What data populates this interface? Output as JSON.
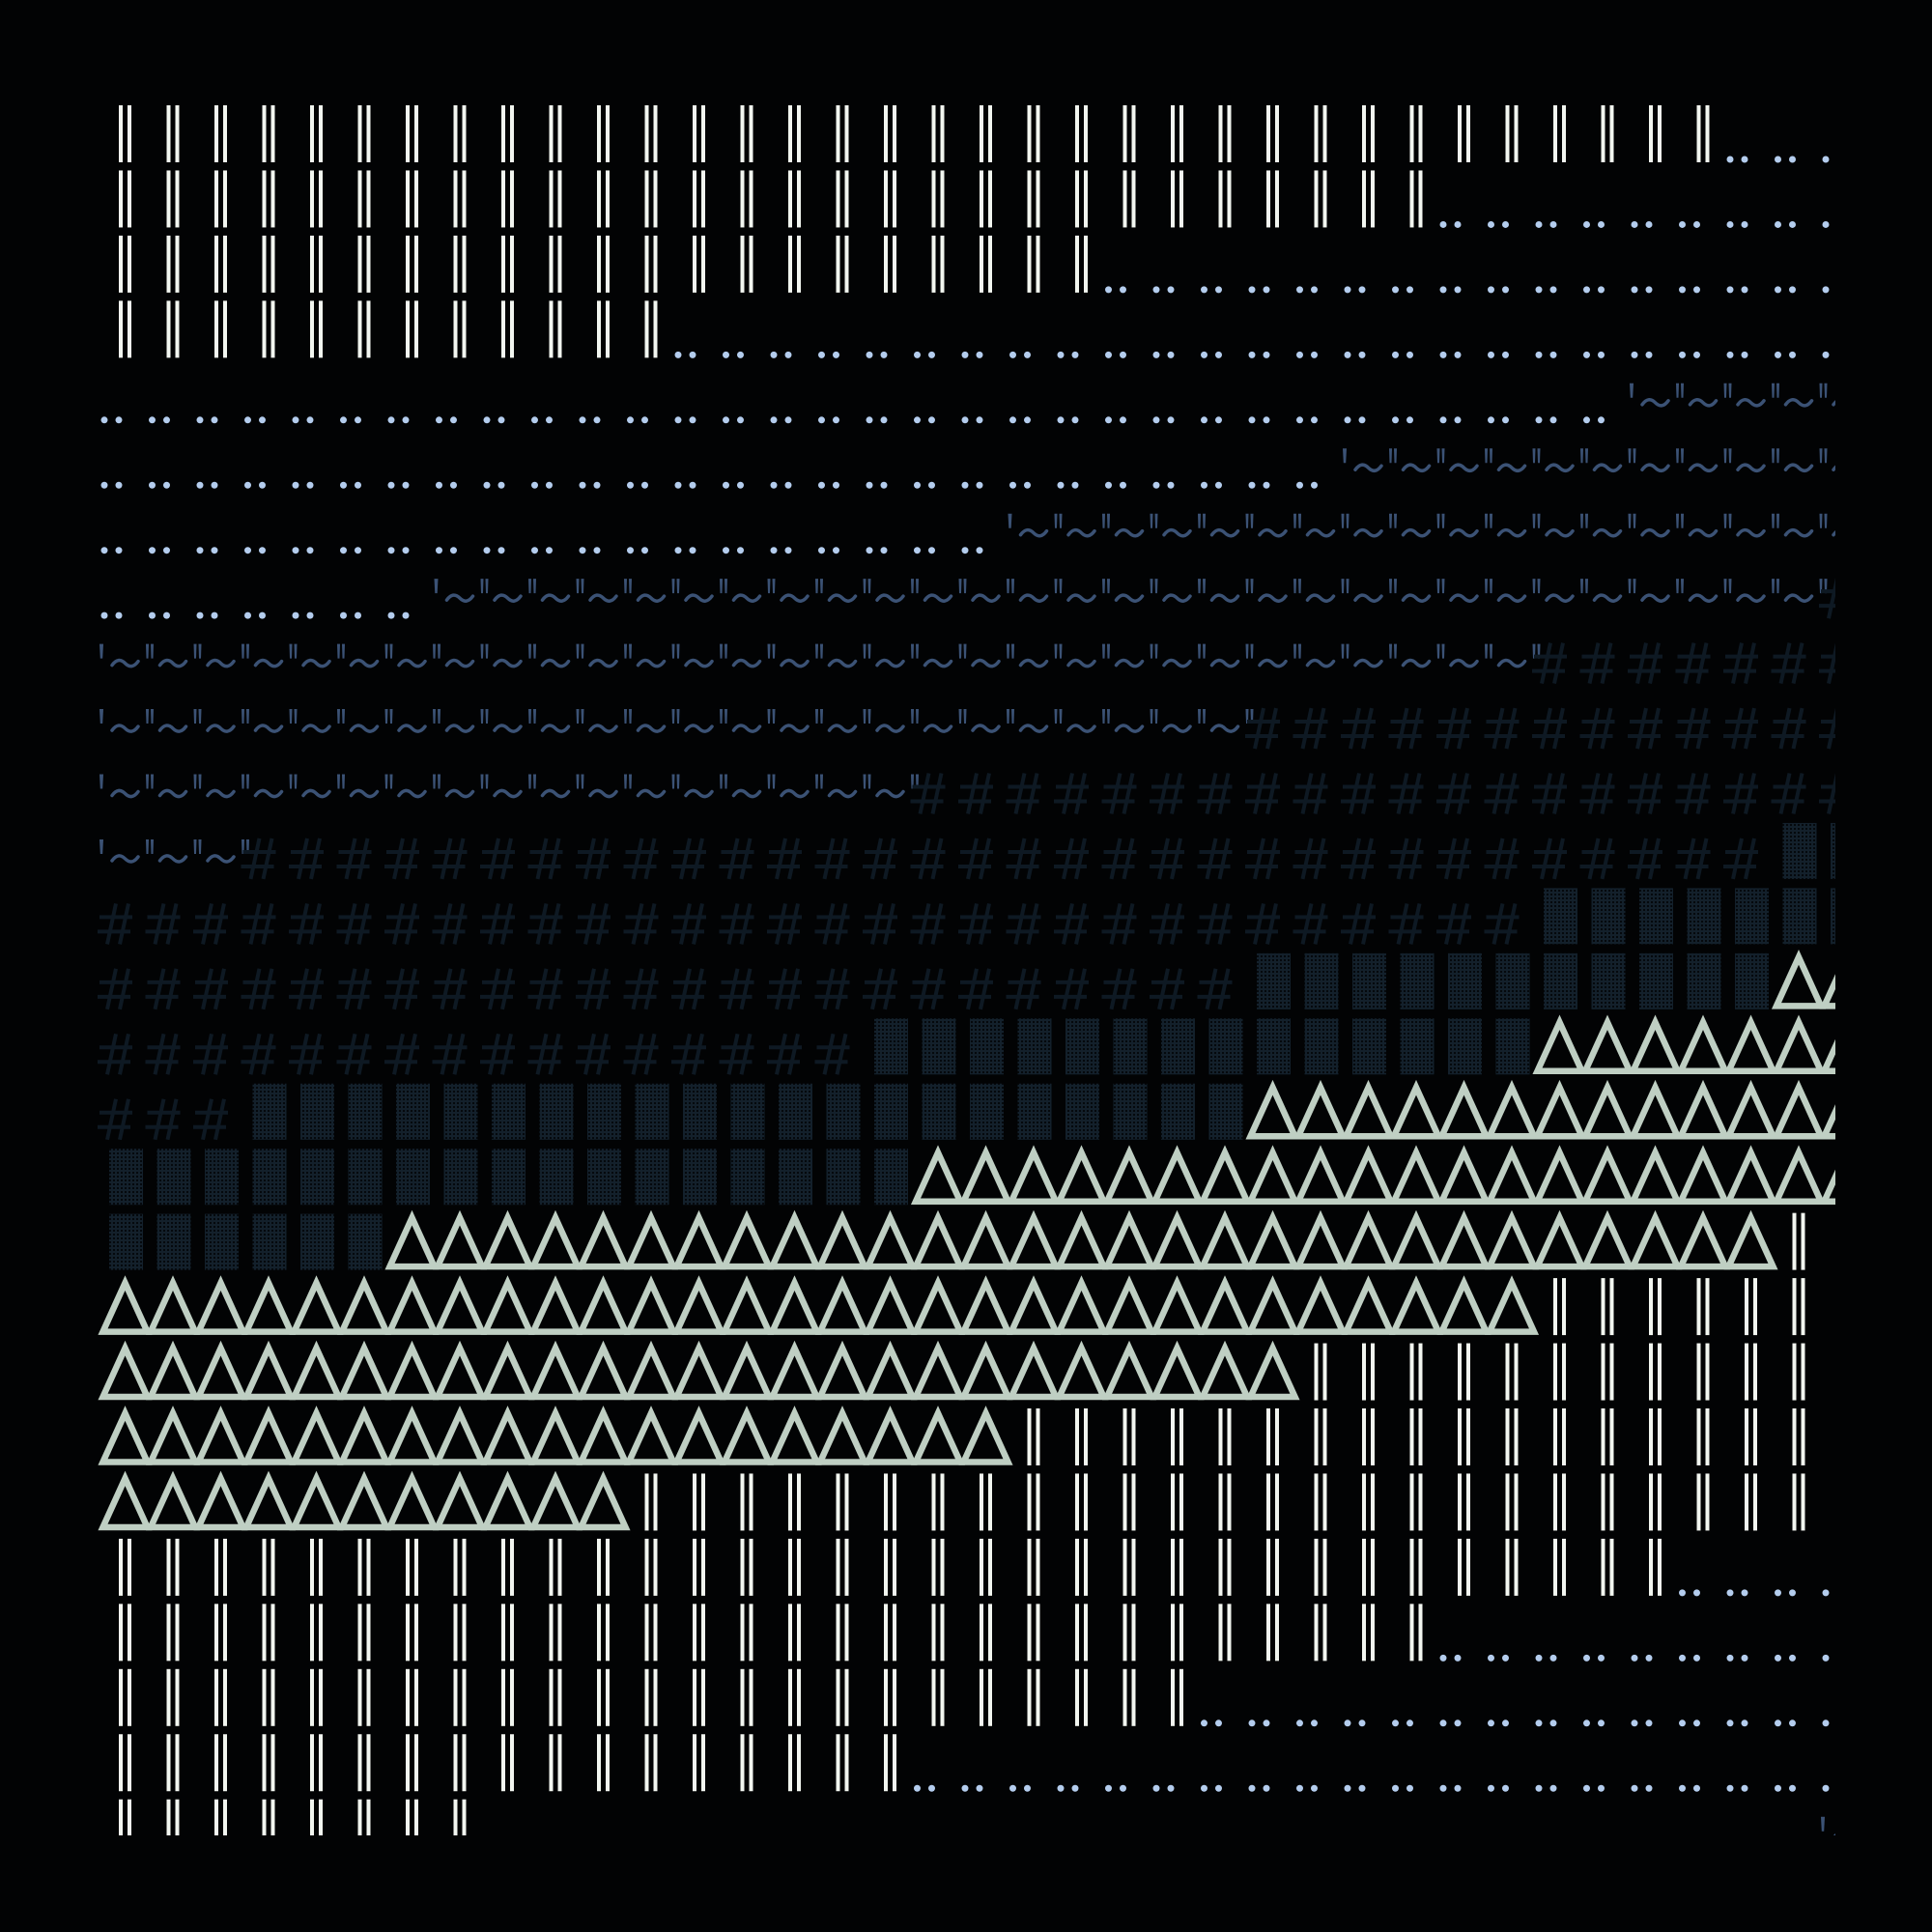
{
  "palette": {
    "background": "#020304",
    "‖": "#f2f6f0",
    "‥": "#b4cdee",
    "~": "#3b5275",
    "#": "#0e1923",
    "▓": "#13202b",
    "△": "#bfcfc3"
  },
  "glyph_names": {
    "‖": "double-bar",
    "‥": "dot-pair",
    "~": "tilde-quote",
    "#": "hash",
    "▓": "dotted-block",
    "△": "triangle",
    " ": "blank"
  },
  "rows": [
    [
      [
        "‖",
        34
      ],
      [
        "‥",
        3
      ]
    ],
    [
      [
        "‖",
        28
      ],
      [
        "‥",
        9
      ]
    ],
    [
      [
        "‖",
        21
      ],
      [
        "‥",
        16
      ]
    ],
    [
      [
        "‖",
        12
      ],
      [
        "‥",
        25
      ]
    ],
    [
      [
        "‥",
        32
      ],
      [
        "~",
        5
      ]
    ],
    [
      [
        "‥",
        26
      ],
      [
        "~",
        11
      ]
    ],
    [
      [
        "‥",
        19
      ],
      [
        "~",
        18
      ]
    ],
    [
      [
        "‥",
        7
      ],
      [
        "~",
        29
      ],
      [
        "#",
        1
      ]
    ],
    [
      [
        "~",
        30
      ],
      [
        "#",
        7
      ]
    ],
    [
      [
        "~",
        24
      ],
      [
        "#",
        13
      ]
    ],
    [
      [
        "~",
        17
      ],
      [
        "#",
        20
      ]
    ],
    [
      [
        "~",
        3
      ],
      [
        "#",
        32
      ],
      [
        "▓",
        2
      ]
    ],
    [
      [
        "#",
        30
      ],
      [
        "▓",
        7
      ]
    ],
    [
      [
        "#",
        24
      ],
      [
        "▓",
        11
      ],
      [
        "△",
        2
      ]
    ],
    [
      [
        "#",
        16
      ],
      [
        "▓",
        14
      ],
      [
        "△",
        7
      ]
    ],
    [
      [
        "#",
        3
      ],
      [
        "▓",
        21
      ],
      [
        "△",
        13
      ]
    ],
    [
      [
        "▓",
        17
      ],
      [
        "△",
        20
      ]
    ],
    [
      [
        "▓",
        6
      ],
      [
        "△",
        29
      ],
      [
        "‖",
        2
      ]
    ],
    [
      [
        "△",
        30
      ],
      [
        "‖",
        7
      ]
    ],
    [
      [
        "△",
        25
      ],
      [
        "‖",
        12
      ]
    ],
    [
      [
        "△",
        19
      ],
      [
        "‖",
        18
      ]
    ],
    [
      [
        "△",
        11
      ],
      [
        "‖",
        26
      ]
    ],
    [
      [
        "‖",
        33
      ],
      [
        "‥",
        4
      ]
    ],
    [
      [
        "‖",
        28
      ],
      [
        "‥",
        9
      ]
    ],
    [
      [
        "‖",
        23
      ],
      [
        "‥",
        14
      ]
    ],
    [
      [
        "‖",
        17
      ],
      [
        "‥",
        20
      ]
    ],
    [
      [
        "‖",
        8
      ],
      [
        " ",
        28
      ],
      [
        "~",
        1
      ]
    ]
  ]
}
